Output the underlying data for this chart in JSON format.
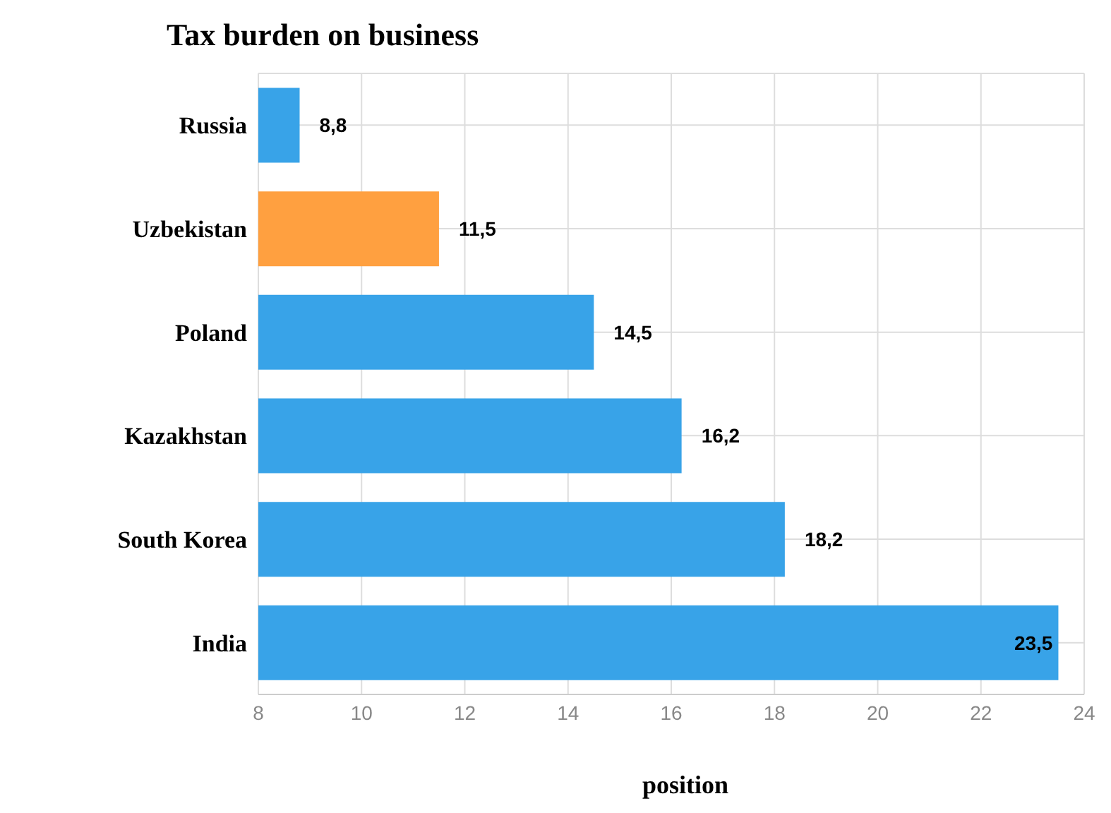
{
  "chart_data": {
    "type": "bar",
    "orientation": "horizontal",
    "title": "Tax burden on business",
    "xlabel": "position",
    "categories": [
      "Russia",
      "Uzbekistan",
      "Poland",
      "Kazakhstan",
      "South Korea",
      "India"
    ],
    "values": [
      8.8,
      11.5,
      14.5,
      16.2,
      18.2,
      23.5
    ],
    "colors": [
      "#38a3e8",
      "#ffa040",
      "#38a3e8",
      "#38a3e8",
      "#38a3e8",
      "#38a3e8"
    ],
    "value_labels": [
      "8,8",
      "11,5",
      "14,5",
      "16,2",
      "18,2",
      "23,5"
    ],
    "xlim": [
      8,
      24
    ],
    "xticks": [
      8,
      10,
      12,
      14,
      16,
      18,
      20,
      22,
      24
    ],
    "grid": true
  }
}
